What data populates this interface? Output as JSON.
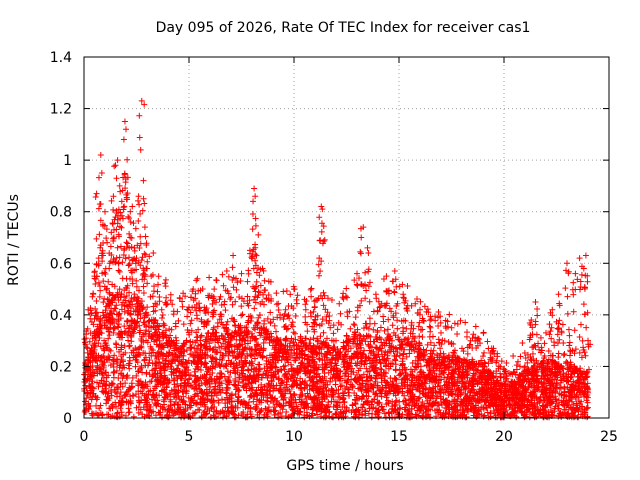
{
  "chart_data": {
    "type": "scatter",
    "title": "Day 095 of 2026, Rate Of TEC Index for receiver cas1",
    "xlabel": "GPS time / hours",
    "ylabel": "ROTI / TECUs",
    "xlim": [
      0,
      25
    ],
    "ylim": [
      0,
      1.4
    ],
    "xticks": [
      0,
      5,
      10,
      15,
      20,
      25
    ],
    "xtick_labels": [
      "0",
      "5",
      "10",
      "15",
      "20",
      "25"
    ],
    "yticks": [
      0,
      0.2,
      0.4,
      0.6,
      0.8,
      1,
      1.2,
      1.4
    ],
    "ytick_labels": [
      "0",
      "0.2",
      "0.4",
      "0.6",
      "0.8",
      "1",
      "1.2",
      "1.4"
    ],
    "grid": true,
    "marker": "plus",
    "color": "#ff0000",
    "series": [
      {
        "name": "ROTI",
        "points": [
          [
            0.1,
            0.31
          ],
          [
            0.2,
            0.42
          ],
          [
            0.3,
            0.22
          ],
          [
            0.4,
            0.47
          ],
          [
            0.5,
            0.55
          ],
          [
            0.6,
            0.87
          ],
          [
            0.7,
            0.62
          ],
          [
            0.8,
            1.02
          ],
          [
            0.85,
            0.95
          ],
          [
            0.9,
            0.75
          ],
          [
            1.0,
            0.8
          ],
          [
            1.1,
            0.68
          ],
          [
            1.2,
            0.58
          ],
          [
            1.3,
            0.72
          ],
          [
            1.4,
            0.86
          ],
          [
            1.5,
            0.98
          ],
          [
            1.55,
            0.93
          ],
          [
            1.6,
            1.0
          ],
          [
            1.7,
            0.9
          ],
          [
            1.8,
            0.84
          ],
          [
            1.9,
            1.08
          ],
          [
            1.95,
            1.15
          ],
          [
            2.0,
            1.12
          ],
          [
            2.1,
            0.78
          ],
          [
            2.2,
            0.7
          ],
          [
            2.3,
            0.82
          ],
          [
            2.4,
            0.66
          ],
          [
            2.5,
            0.62
          ],
          [
            2.6,
            0.86
          ],
          [
            2.7,
            1.04
          ],
          [
            2.75,
            1.23
          ],
          [
            2.9,
            0.74
          ],
          [
            3.0,
            0.58
          ],
          [
            3.2,
            0.55
          ],
          [
            3.3,
            0.64
          ],
          [
            3.5,
            0.49
          ],
          [
            3.7,
            0.42
          ],
          [
            3.9,
            0.34
          ],
          [
            4.1,
            0.32
          ],
          [
            4.4,
            0.3
          ],
          [
            4.7,
            0.28
          ],
          [
            5.0,
            0.43
          ],
          [
            5.2,
            0.5
          ],
          [
            5.4,
            0.54
          ],
          [
            5.8,
            0.42
          ],
          [
            6.2,
            0.5
          ],
          [
            6.5,
            0.47
          ],
          [
            6.8,
            0.57
          ],
          [
            7.1,
            0.63
          ],
          [
            7.5,
            0.56
          ],
          [
            7.9,
            0.65
          ],
          [
            8.05,
            0.84
          ],
          [
            8.1,
            0.89
          ],
          [
            8.15,
            0.86
          ],
          [
            8.3,
            0.71
          ],
          [
            8.5,
            0.58
          ],
          [
            8.8,
            0.53
          ],
          [
            9.2,
            0.39
          ],
          [
            9.6,
            0.42
          ],
          [
            10.0,
            0.5
          ],
          [
            10.5,
            0.46
          ],
          [
            11.0,
            0.38
          ],
          [
            11.2,
            0.62
          ],
          [
            11.3,
            0.82
          ],
          [
            11.35,
            0.81
          ],
          [
            11.6,
            0.41
          ],
          [
            12.0,
            0.3
          ],
          [
            12.5,
            0.32
          ],
          [
            13.0,
            0.56
          ],
          [
            13.2,
            0.7
          ],
          [
            13.3,
            0.74
          ],
          [
            13.5,
            0.66
          ],
          [
            13.9,
            0.48
          ],
          [
            14.4,
            0.55
          ],
          [
            14.8,
            0.57
          ],
          [
            15.2,
            0.48
          ],
          [
            15.6,
            0.36
          ],
          [
            16.0,
            0.42
          ],
          [
            16.5,
            0.35
          ],
          [
            17.0,
            0.33
          ],
          [
            17.5,
            0.29
          ],
          [
            18.0,
            0.27
          ],
          [
            18.5,
            0.31
          ],
          [
            19.0,
            0.24
          ],
          [
            19.5,
            0.27
          ],
          [
            20.0,
            0.17
          ],
          [
            20.5,
            0.14
          ],
          [
            21.0,
            0.2
          ],
          [
            21.3,
            0.38
          ],
          [
            21.5,
            0.45
          ],
          [
            22.0,
            0.33
          ],
          [
            22.3,
            0.42
          ],
          [
            22.6,
            0.48
          ],
          [
            23.0,
            0.6
          ],
          [
            23.4,
            0.56
          ],
          [
            23.6,
            0.62
          ],
          [
            23.8,
            0.58
          ],
          [
            23.9,
            0.63
          ],
          [
            24.0,
            0.3
          ]
        ],
        "envelope": [
          [
            0,
            0.18
          ],
          [
            1,
            0.38
          ],
          [
            2,
            0.45
          ],
          [
            3,
            0.36
          ],
          [
            4,
            0.28
          ],
          [
            5,
            0.26
          ],
          [
            6,
            0.29
          ],
          [
            7,
            0.3
          ],
          [
            8,
            0.35
          ],
          [
            9,
            0.27
          ],
          [
            10,
            0.27
          ],
          [
            11,
            0.27
          ],
          [
            12,
            0.24
          ],
          [
            13,
            0.29
          ],
          [
            14,
            0.27
          ],
          [
            15,
            0.29
          ],
          [
            16,
            0.25
          ],
          [
            17,
            0.22
          ],
          [
            18,
            0.2
          ],
          [
            19,
            0.18
          ],
          [
            20,
            0.11
          ],
          [
            21,
            0.16
          ],
          [
            22,
            0.2
          ],
          [
            23,
            0.19
          ],
          [
            24,
            0.15
          ]
        ]
      }
    ]
  }
}
